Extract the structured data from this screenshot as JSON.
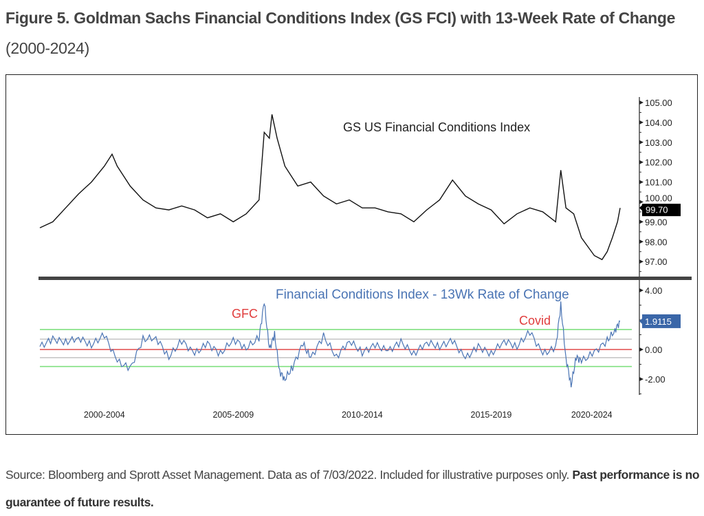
{
  "figure": {
    "title_bold": "Figure 5. Goldman Sachs Financial Conditions Index (GS FCI) with 13-Week Rate of Change",
    "title_sub": "(2000-2024)"
  },
  "source": {
    "text": "Source: Bloomberg and Sprott Asset Management. Data as of 7/03/2022. Included for illustrative purposes only.",
    "bold": "Past performance is no guarantee of future results."
  },
  "chart_data": [
    {
      "type": "line",
      "title": "GS US Financial Conditions Index",
      "ylim": [
        96.2,
        105.2
      ],
      "xlim": [
        2000,
        2022.6
      ],
      "y_ticks": [
        "97.00",
        "98.00",
        "99.00",
        "100.00",
        "101.00",
        "102.00",
        "103.00",
        "104.00",
        "105.00"
      ],
      "last_value_label": "99.70",
      "color": "#111111",
      "series": [
        {
          "x": [
            2000,
            2000.5,
            2001,
            2001.5,
            2002,
            2002.5,
            2002.8,
            2003,
            2003.5,
            2004,
            2004.5,
            2005,
            2005.5,
            2006,
            2006.5,
            2007,
            2007.5,
            2008,
            2008.5,
            2008.7,
            2008.9,
            2009,
            2009.2,
            2009.5,
            2010,
            2010.5,
            2011,
            2011.5,
            2012,
            2012.5,
            2013,
            2013.5,
            2014,
            2014.5,
            2015,
            2015.5,
            2016,
            2016.5,
            2017,
            2017.5,
            2018,
            2018.5,
            2019,
            2019.5,
            2020,
            2020.2,
            2020.4,
            2020.7,
            2021,
            2021.5,
            2021.8,
            2022,
            2022.2,
            2022.4,
            2022.5
          ],
          "y": [
            98.7,
            99.0,
            99.7,
            100.4,
            101.0,
            101.8,
            102.4,
            101.8,
            100.8,
            100.1,
            99.7,
            99.6,
            99.8,
            99.6,
            99.2,
            99.4,
            99.0,
            99.4,
            100.1,
            103.5,
            103.2,
            104.4,
            103.2,
            101.8,
            100.8,
            101.0,
            100.3,
            99.9,
            100.1,
            99.7,
            99.7,
            99.5,
            99.4,
            99.0,
            99.6,
            100.1,
            101.1,
            100.3,
            99.9,
            99.6,
            98.9,
            99.4,
            99.7,
            99.5,
            99.0,
            101.6,
            99.7,
            99.4,
            98.2,
            97.3,
            97.1,
            97.5,
            98.2,
            99.0,
            99.7
          ]
        }
      ]
    },
    {
      "type": "line",
      "title": "Financial Conditions Index - 13Wk Rate of Change",
      "ylim": [
        -3.2,
        4.3
      ],
      "xlim": [
        2000,
        2022.6
      ],
      "y_ticks": [
        "-2.00",
        "0.00",
        "4.00"
      ],
      "x_tick_labels": [
        "2000-2004",
        "2005-2009",
        "2010-2014",
        "2015-2019",
        "2020-2024"
      ],
      "last_value_label": "1.9115",
      "annotations": [
        "GFC",
        "Covid"
      ],
      "reference_lines": {
        "zero": 0,
        "upper_band": 1.35,
        "lower_band": -1.15,
        "upper_inner": 0.7,
        "lower_inner": -0.55
      },
      "colors": {
        "series": "#4a74b4",
        "zero": "#e04848",
        "band": "#7fe07f",
        "inner": "#c8c8c8",
        "annotation": "#e03c3c"
      },
      "series": [
        {
          "x": [
            2000,
            2000.5,
            2001,
            2001.5,
            2002,
            2002.5,
            2003,
            2003.5,
            2004,
            2004.5,
            2005,
            2005.5,
            2006,
            2006.5,
            2007,
            2007.5,
            2008,
            2008.5,
            2008.7,
            2008.9,
            2009.1,
            2009.3,
            2009.5,
            2009.8,
            2010.2,
            2010.5,
            2011,
            2011.5,
            2012,
            2012.5,
            2013,
            2013.5,
            2014,
            2014.5,
            2015,
            2015.5,
            2016,
            2016.5,
            2017,
            2017.5,
            2018,
            2018.5,
            2019,
            2019.5,
            2020,
            2020.2,
            2020.4,
            2020.6,
            2020.8,
            2021,
            2021.5,
            2022,
            2022.3,
            2022.5
          ],
          "y": [
            0.2,
            0.7,
            0.5,
            0.8,
            0.3,
            1.0,
            -0.8,
            -1.3,
            0.7,
            0.8,
            -0.5,
            0.6,
            -0.3,
            0.4,
            -0.3,
            0.7,
            0.1,
            0.8,
            3.2,
            0.0,
            1.0,
            -1.5,
            -2.0,
            -1.2,
            0.4,
            -0.6,
            0.9,
            -0.5,
            0.6,
            -0.2,
            0.3,
            -0.1,
            0.5,
            -0.3,
            0.5,
            0.2,
            0.6,
            -0.6,
            0.2,
            -0.3,
            0.6,
            0.2,
            1.2,
            -0.3,
            0.1,
            3.0,
            -0.6,
            -2.4,
            -0.5,
            -0.8,
            -0.2,
            0.6,
            1.3,
            1.9
          ]
        }
      ]
    }
  ]
}
